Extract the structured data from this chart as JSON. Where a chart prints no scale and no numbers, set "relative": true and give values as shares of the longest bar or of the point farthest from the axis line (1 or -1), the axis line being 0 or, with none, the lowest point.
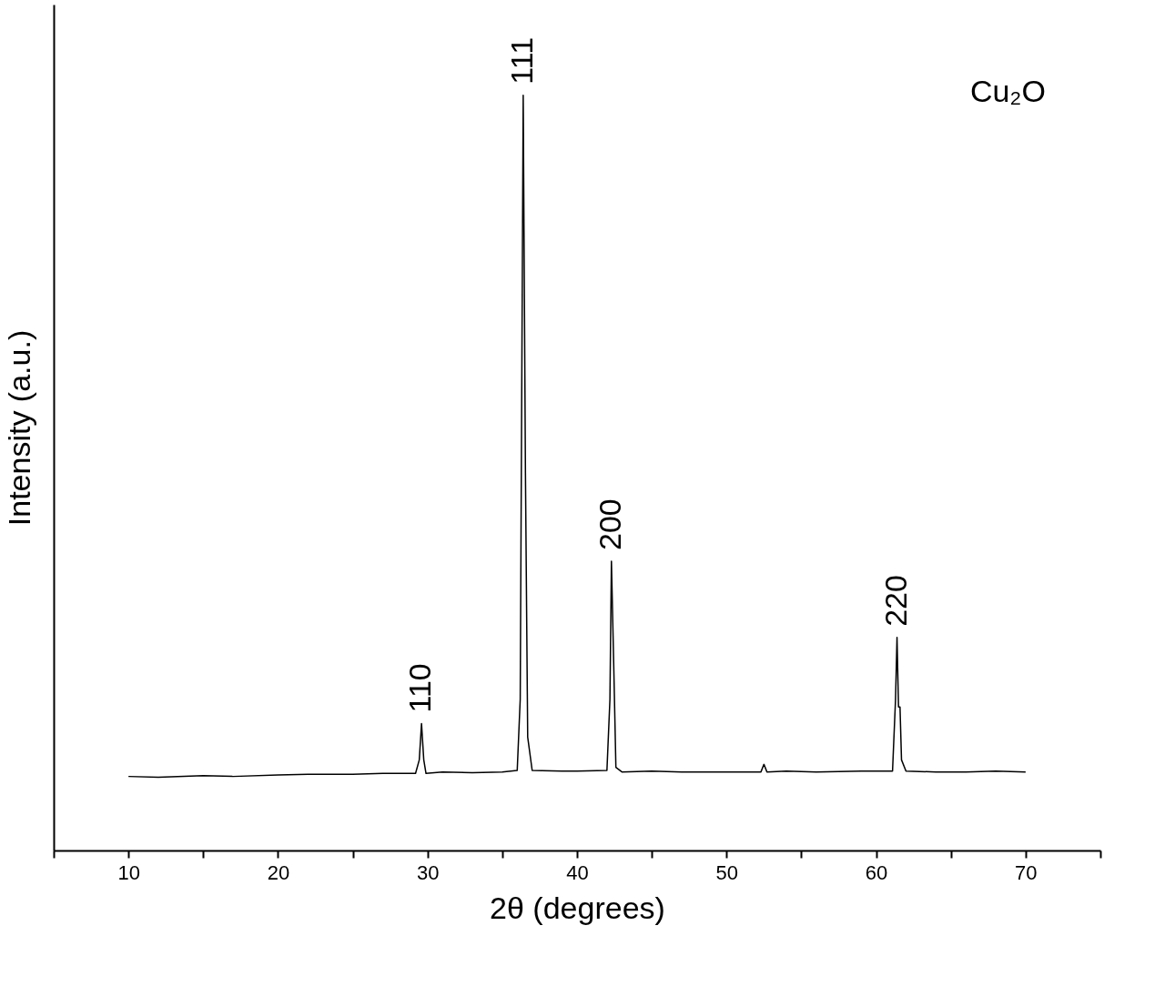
{
  "chart_data": {
    "type": "line",
    "xlabel": "2θ (degrees)",
    "ylabel": "Intensity (a.u.)",
    "relative": true,
    "color": "#000000",
    "grid": false,
    "tick_labels": "x",
    "marker": "none",
    "x": [
      10,
      12,
      15,
      17,
      20,
      22,
      25,
      27,
      29.2,
      29.45,
      29.6,
      29.75,
      29.9,
      31,
      33,
      35,
      36.0,
      36.2,
      36.4,
      36.55,
      36.7,
      37,
      39,
      40,
      42.0,
      42.2,
      42.3,
      42.45,
      42.6,
      43,
      45,
      47,
      50,
      52.3,
      52.5,
      52.7,
      54,
      56,
      59,
      61.1,
      61.3,
      61.4,
      61.5,
      61.6,
      61.7,
      62,
      64,
      66,
      68,
      70
    ],
    "values": [
      0.098,
      0.097,
      0.099,
      0.098,
      0.1,
      0.101,
      0.101,
      0.102,
      0.102,
      0.12,
      0.168,
      0.12,
      0.102,
      0.104,
      0.103,
      0.104,
      0.106,
      0.2,
      1.0,
      0.5,
      0.15,
      0.106,
      0.105,
      0.105,
      0.106,
      0.2,
      0.383,
      0.25,
      0.11,
      0.104,
      0.105,
      0.104,
      0.104,
      0.104,
      0.114,
      0.104,
      0.105,
      0.104,
      0.105,
      0.105,
      0.2,
      0.282,
      0.19,
      0.19,
      0.12,
      0.105,
      0.104,
      0.104,
      0.105,
      0.104
    ],
    "xlim": [
      5,
      75
    ],
    "xticks": [
      {
        "value": 5,
        "label": null
      },
      10,
      {
        "value": 15,
        "label": null
      },
      20,
      {
        "value": 25,
        "label": null
      },
      30,
      {
        "value": 35,
        "label": null
      },
      40,
      {
        "value": 45,
        "label": null
      },
      50,
      {
        "value": 55,
        "label": null
      },
      60,
      {
        "value": 65,
        "label": null
      },
      70,
      {
        "value": 75,
        "label": null
      }
    ],
    "annotations": [
      {
        "text": "110",
        "x": 29.6,
        "y": 0.168
      },
      {
        "text": "111",
        "x": 36.4,
        "y": 1.0
      },
      {
        "text": "200",
        "x": 42.3,
        "y": 0.383
      },
      {
        "text": "220",
        "x": 61.4,
        "y": 0.282
      },
      "Cu₂O"
    ]
  }
}
